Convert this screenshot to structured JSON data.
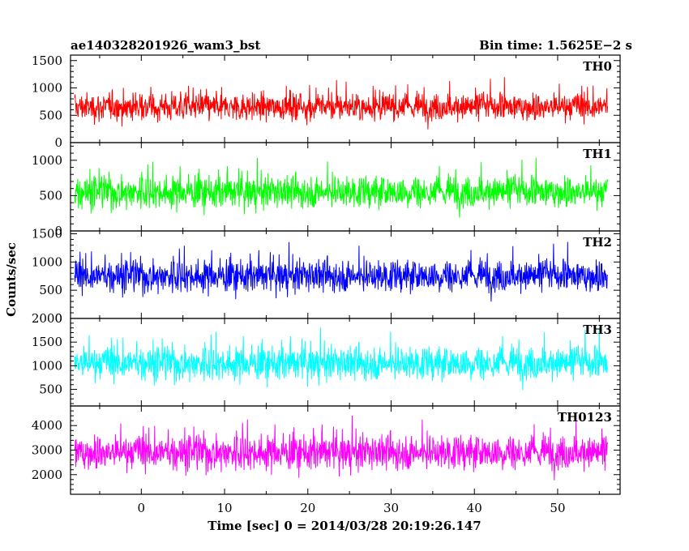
{
  "header": {
    "left_title": "ae140328201926_wam3_bst",
    "right_title": "Bin time: 1.5625E−2 s"
  },
  "axes": {
    "xlabel": "Time [sec] 0 = 2014/03/28 20:19:26.147",
    "ylabel": "Counts/sec"
  },
  "chart_data": {
    "type": "line",
    "x_range": [
      -8.5,
      57.5
    ],
    "x_data_range": [
      -8.0,
      56.0
    ],
    "x_ticks": [
      0,
      10,
      20,
      30,
      40,
      50
    ],
    "x_tick_labels": [
      "0",
      "10",
      "20",
      "30",
      "40",
      "50"
    ],
    "grid": false,
    "panels": [
      {
        "name": "TH0",
        "color": "#ff0000",
        "ylim": [
          0,
          1600
        ],
        "yticks": [
          0,
          500,
          1000,
          1500
        ],
        "ytick_labels": [
          "0",
          "500",
          "1000",
          "1500"
        ],
        "mean": 650,
        "spread": 180,
        "min_typical": 150,
        "max_typical": 1600
      },
      {
        "name": "TH1",
        "color": "#00ff00",
        "ylim": [
          0,
          1250
        ],
        "yticks": [
          0,
          500,
          1000
        ],
        "ytick_labels": [
          "0",
          "500",
          "1000"
        ],
        "mean": 550,
        "spread": 160,
        "min_typical": 80,
        "max_typical": 1250
      },
      {
        "name": "TH2",
        "color": "#0000ff",
        "ylim": [
          0,
          1550
        ],
        "yticks": [
          0,
          500,
          1000,
          1500
        ],
        "ytick_labels": [
          "0",
          "500",
          "1000",
          "1500"
        ],
        "mean": 750,
        "spread": 200,
        "min_typical": 200,
        "max_typical": 1500
      },
      {
        "name": "TH3",
        "color": "#00ffff",
        "ylim": [
          150,
          2000
        ],
        "yticks": [
          500,
          1000,
          1500,
          2000
        ],
        "ytick_labels": [
          "500",
          "1000",
          "1500",
          "2000"
        ],
        "mean": 1050,
        "spread": 250,
        "min_typical": 400,
        "max_typical": 2000
      },
      {
        "name": "TH0123",
        "color": "#ff00ff",
        "ylim": [
          1200,
          4800
        ],
        "yticks": [
          2000,
          3000,
          4000
        ],
        "ytick_labels": [
          "2000",
          "3000",
          "4000"
        ],
        "mean": 2900,
        "spread": 500,
        "min_typical": 1500,
        "max_typical": 4800
      }
    ]
  }
}
